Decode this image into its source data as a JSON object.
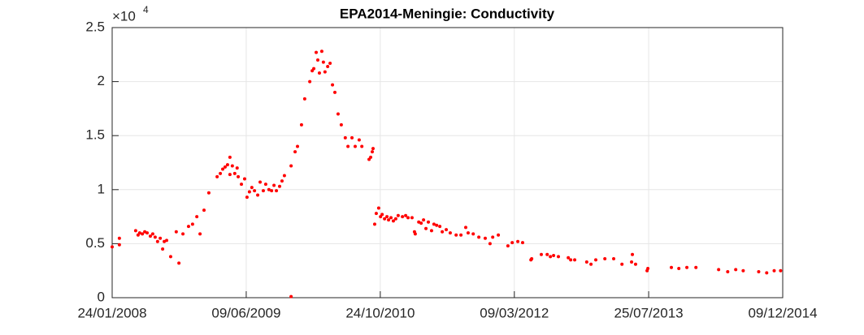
{
  "chart_data": {
    "type": "scatter",
    "title": "EPA2014-Meningie: Conductivity",
    "y_exponent": {
      "base": "×10",
      "power": "4"
    },
    "color": "#ff0000",
    "grid": true,
    "xlim": [
      "2008-01-24",
      "2014-12-09"
    ],
    "xticks": [
      {
        "value": "2008-01-24",
        "label": "24/01/2008"
      },
      {
        "value": "2009-06-09",
        "label": "09/06/2009"
      },
      {
        "value": "2010-10-24",
        "label": "24/10/2010"
      },
      {
        "value": "2012-03-09",
        "label": "09/03/2012"
      },
      {
        "value": "2013-07-25",
        "label": "25/07/2013"
      },
      {
        "value": "2014-12-09",
        "label": "09/12/2014"
      }
    ],
    "ylim": [
      0,
      2.5
    ],
    "yticks": [
      0,
      0.5,
      1,
      1.5,
      2,
      2.5
    ],
    "x": [
      "2008-01-24",
      "2008-02-20",
      "2008-02-20",
      "2008-04-21",
      "2008-04-30",
      "2008-05-06",
      "2008-05-16",
      "2008-05-25",
      "2008-06-03",
      "2008-06-15",
      "2008-06-24",
      "2008-07-03",
      "2008-07-12",
      "2008-07-22",
      "2008-07-31",
      "2008-08-06",
      "2008-08-15",
      "2008-08-30",
      "2008-09-20",
      "2008-09-30",
      "2008-10-15",
      "2008-11-05",
      "2008-11-20",
      "2008-12-06",
      "2008-12-18",
      "2009-01-02",
      "2009-01-20",
      "2009-02-20",
      "2009-03-04",
      "2009-03-13",
      "2009-03-22",
      "2009-03-31",
      "2009-04-09",
      "2009-04-09",
      "2009-04-18",
      "2009-04-27",
      "2009-05-06",
      "2009-05-10",
      "2009-05-22",
      "2009-06-03",
      "2009-06-12",
      "2009-06-21",
      "2009-06-30",
      "2009-07-10",
      "2009-07-22",
      "2009-07-31",
      "2009-08-12",
      "2009-08-21",
      "2009-09-02",
      "2009-09-12",
      "2009-09-21",
      "2009-09-30",
      "2009-10-12",
      "2009-10-21",
      "2009-10-30",
      "2009-11-24",
      "2009-11-24",
      "2009-12-09",
      "2009-12-18",
      "2010-01-02",
      "2010-01-14",
      "2010-02-02",
      "2010-02-11",
      "2010-02-17",
      "2010-02-26",
      "2010-03-04",
      "2010-03-10",
      "2010-03-19",
      "2010-03-25",
      "2010-03-31",
      "2010-04-10",
      "2010-04-19",
      "2010-04-28",
      "2010-05-07",
      "2010-05-19",
      "2010-05-31",
      "2010-06-15",
      "2010-06-25",
      "2010-07-10",
      "2010-07-22",
      "2010-08-06",
      "2010-08-16",
      "2010-09-12",
      "2010-09-18",
      "2010-09-24",
      "2010-09-27",
      "2010-10-03",
      "2010-10-09",
      "2010-10-18",
      "2010-10-25",
      "2010-10-31",
      "2010-11-09",
      "2010-11-18",
      "2010-11-24",
      "2010-12-03",
      "2010-12-12",
      "2010-12-21",
      "2010-12-30",
      "2011-01-15",
      "2011-01-27",
      "2011-02-05",
      "2011-02-20",
      "2011-03-01",
      "2011-03-04",
      "2011-03-17",
      "2011-03-26",
      "2011-04-04",
      "2011-04-13",
      "2011-04-22",
      "2011-05-04",
      "2011-05-13",
      "2011-05-23",
      "2011-06-04",
      "2011-06-13",
      "2011-06-28",
      "2011-07-13",
      "2011-08-04",
      "2011-08-22",
      "2011-09-09",
      "2011-09-18",
      "2011-10-07",
      "2011-10-28",
      "2011-11-21",
      "2011-12-09",
      "2011-12-19",
      "2012-01-09",
      "2012-02-14",
      "2012-03-01",
      "2012-03-22",
      "2012-04-09",
      "2012-05-10",
      "2012-05-13",
      "2012-06-18",
      "2012-07-10",
      "2012-07-22",
      "2012-08-03",
      "2012-08-21",
      "2012-09-27",
      "2012-10-06",
      "2012-10-21",
      "2012-12-05",
      "2012-12-21",
      "2013-01-08",
      "2013-02-11",
      "2013-03-16",
      "2013-04-16",
      "2013-05-22",
      "2013-05-25",
      "2013-06-06",
      "2013-07-19",
      "2013-07-22",
      "2013-10-18",
      "2013-11-15",
      "2013-12-15",
      "2014-01-18",
      "2014-04-13",
      "2014-05-17",
      "2014-06-16",
      "2014-07-14",
      "2014-09-10",
      "2014-10-10",
      "2014-11-07",
      "2014-12-01"
    ],
    "values": [
      0.47,
      0.49,
      0.55,
      0.62,
      0.58,
      0.6,
      0.59,
      0.61,
      0.6,
      0.57,
      0.59,
      0.56,
      0.52,
      0.55,
      0.45,
      0.52,
      0.53,
      0.38,
      0.61,
      0.32,
      0.59,
      0.66,
      0.68,
      0.75,
      0.59,
      0.81,
      0.97,
      1.12,
      1.15,
      1.19,
      1.21,
      1.23,
      1.3,
      1.14,
      1.22,
      1.15,
      1.2,
      1.12,
      1.05,
      1.1,
      0.93,
      0.98,
      1.02,
      0.99,
      0.95,
      1.07,
      0.99,
      1.05,
      1.0,
      0.99,
      1.04,
      0.99,
      1.03,
      1.08,
      1.13,
      0.01,
      1.22,
      1.35,
      1.4,
      1.6,
      1.84,
      2.0,
      2.1,
      2.12,
      2.27,
      2.2,
      2.08,
      2.28,
      2.18,
      2.09,
      2.14,
      2.17,
      1.97,
      1.9,
      1.7,
      1.6,
      1.48,
      1.4,
      1.48,
      1.4,
      1.46,
      1.4,
      1.28,
      1.3,
      1.35,
      1.38,
      0.68,
      0.78,
      0.83,
      0.75,
      0.77,
      0.73,
      0.75,
      0.72,
      0.74,
      0.71,
      0.73,
      0.76,
      0.75,
      0.76,
      0.74,
      0.74,
      0.61,
      0.59,
      0.7,
      0.69,
      0.72,
      0.64,
      0.7,
      0.62,
      0.68,
      0.67,
      0.66,
      0.61,
      0.63,
      0.6,
      0.58,
      0.58,
      0.65,
      0.6,
      0.59,
      0.56,
      0.55,
      0.5,
      0.56,
      0.58,
      0.48,
      0.51,
      0.52,
      0.51,
      0.35,
      0.36,
      0.4,
      0.4,
      0.38,
      0.39,
      0.38,
      0.37,
      0.35,
      0.35,
      0.33,
      0.31,
      0.35,
      0.36,
      0.36,
      0.31,
      0.33,
      0.4,
      0.31,
      0.25,
      0.27,
      0.28,
      0.27,
      0.28,
      0.28,
      0.26,
      0.24,
      0.26,
      0.25,
      0.24,
      0.23,
      0.25,
      0.25
    ]
  }
}
